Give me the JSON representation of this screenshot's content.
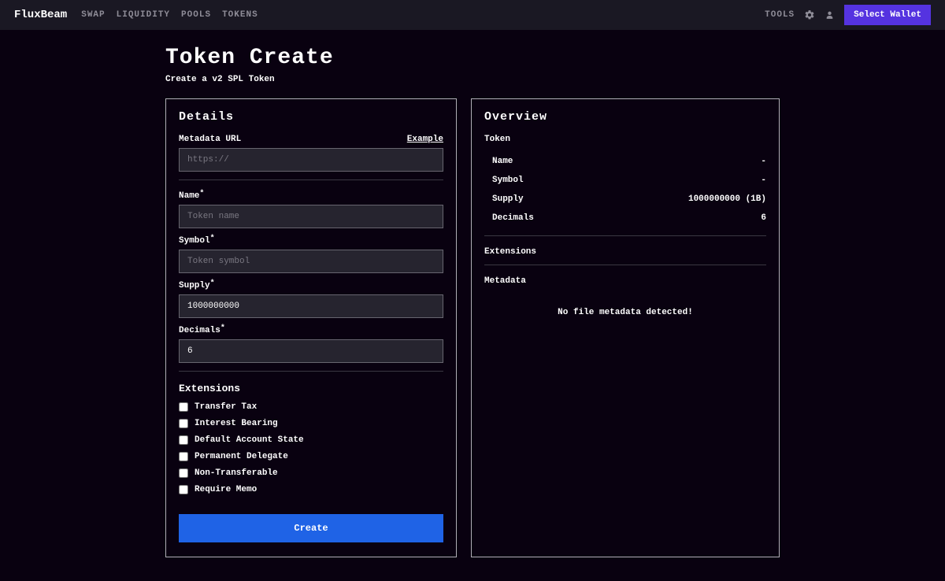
{
  "colors": {
    "background": "#090110",
    "topbar_bg": "#1a1823",
    "text": "#ffffff",
    "muted": "#8f8d98",
    "input_bg": "#26242f",
    "input_border": "#67656f",
    "panel_border": "#b0afb6",
    "primary_btn": "#1f63e6",
    "wallet_btn": "#5533e0",
    "divider": "#3a3842"
  },
  "topbar": {
    "brand": "FluxBeam",
    "nav": [
      "SWAP",
      "LIQUIDITY",
      "POOLS",
      "TOKENS"
    ],
    "tools_label": "TOOLS",
    "wallet_label": "Select Wallet"
  },
  "page": {
    "title": "Token Create",
    "subtitle": "Create a v2 SPL Token"
  },
  "details": {
    "title": "Details",
    "example_label": "Example",
    "fields": {
      "metadata_url": {
        "label": "Metadata URL",
        "placeholder": "https://",
        "value": "",
        "required": false
      },
      "name": {
        "label": "Name",
        "placeholder": "Token name",
        "value": "",
        "required": true
      },
      "symbol": {
        "label": "Symbol",
        "placeholder": "Token symbol",
        "value": "",
        "required": true
      },
      "supply": {
        "label": "Supply",
        "placeholder": "",
        "value": "1000000000",
        "required": true
      },
      "decimals": {
        "label": "Decimals",
        "placeholder": "",
        "value": "6",
        "required": true
      }
    },
    "extensions_title": "Extensions",
    "extensions": [
      {
        "label": "Transfer Tax",
        "checked": false
      },
      {
        "label": "Interest Bearing",
        "checked": false
      },
      {
        "label": "Default Account State",
        "checked": false
      },
      {
        "label": "Permanent Delegate",
        "checked": false
      },
      {
        "label": "Non-Transferable",
        "checked": false
      },
      {
        "label": "Require Memo",
        "checked": false
      }
    ],
    "create_label": "Create"
  },
  "overview": {
    "title": "Overview",
    "token_section": "Token",
    "rows": [
      {
        "k": "Name",
        "v": "-"
      },
      {
        "k": "Symbol",
        "v": "-"
      },
      {
        "k": "Supply",
        "v": "1000000000 (1B)"
      },
      {
        "k": "Decimals",
        "v": "6"
      }
    ],
    "extensions_section": "Extensions",
    "metadata_section": "Metadata",
    "metadata_empty": "No file metadata detected!"
  }
}
